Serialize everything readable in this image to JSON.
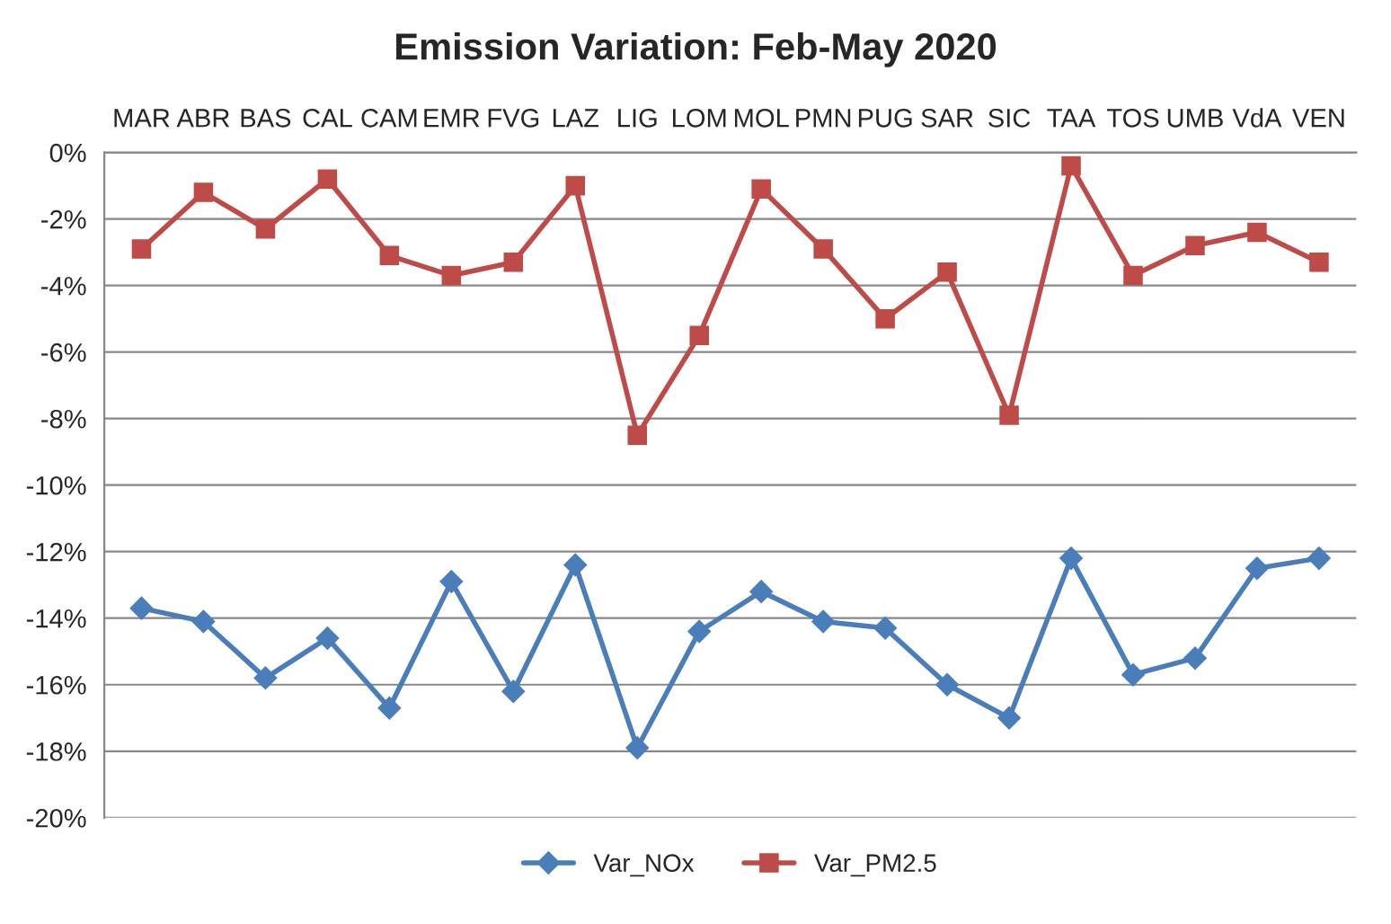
{
  "chart_data": {
    "type": "line",
    "title": "Emission Variation: Feb-May 2020",
    "categories": [
      "MAR",
      "ABR",
      "BAS",
      "CAL",
      "CAM",
      "EMR",
      "FVG",
      "LAZ",
      "LIG",
      "LOM",
      "MOL",
      "PMN",
      "PUG",
      "SAR",
      "SIC",
      "TAA",
      "TOS",
      "UMB",
      "VdA",
      "VEN"
    ],
    "series": [
      {
        "name": "Var_NOx",
        "color": "#4a7ebb",
        "marker": "diamond",
        "values": [
          -13.7,
          -14.1,
          -15.8,
          -14.6,
          -16.7,
          -12.9,
          -16.2,
          -12.4,
          -17.9,
          -14.4,
          -13.2,
          -14.1,
          -14.3,
          -16.0,
          -17.0,
          -12.2,
          -15.7,
          -15.2,
          -12.5,
          -12.2
        ]
      },
      {
        "name": "Var_PM2.5",
        "color": "#be4b48",
        "marker": "square",
        "values": [
          -2.9,
          -1.2,
          -2.3,
          -0.8,
          -3.1,
          -3.7,
          -3.3,
          -1.0,
          -8.5,
          -5.5,
          -1.1,
          -2.9,
          -5.0,
          -3.6,
          -7.9,
          -0.4,
          -3.7,
          -2.8,
          -2.4,
          -3.3
        ]
      }
    ],
    "ylim": [
      -20,
      0
    ],
    "yticks": [
      {
        "value": -20,
        "label": "-20%"
      },
      {
        "value": -18,
        "label": "-18%"
      },
      {
        "value": -16,
        "label": "-16%"
      },
      {
        "value": -14,
        "label": "-14%"
      },
      {
        "value": -12,
        "label": "-12%"
      },
      {
        "value": -10,
        "label": "-10%"
      },
      {
        "value": -8,
        "label": "-8%"
      },
      {
        "value": -6,
        "label": "-6%"
      },
      {
        "value": -4,
        "label": "-4%"
      },
      {
        "value": -2,
        "label": "-2%"
      },
      {
        "value": 0,
        "label": "0%"
      }
    ],
    "grid": "y",
    "legend": "bottom",
    "line_style": "solid"
  }
}
